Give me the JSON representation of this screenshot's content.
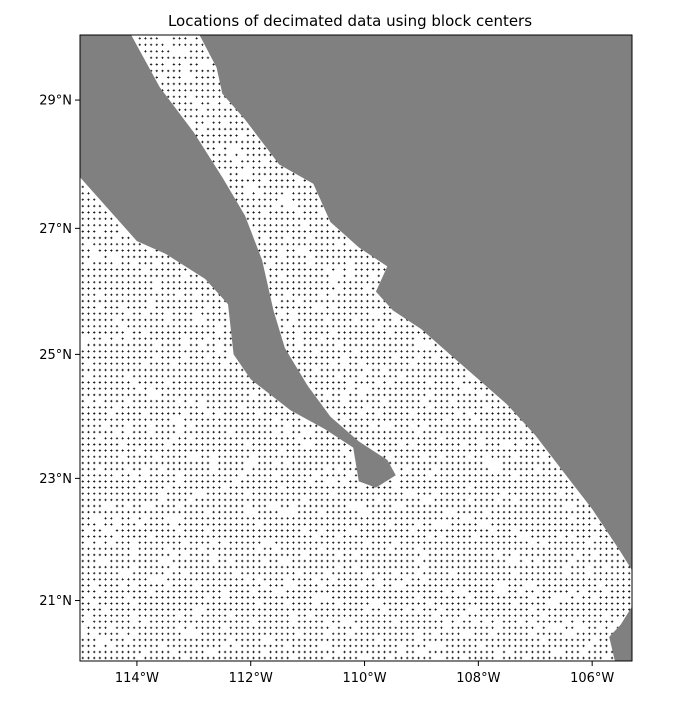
{
  "chart_data": {
    "type": "map",
    "title": "Locations of decimated data using block centers",
    "region": {
      "lon_min": -115.0,
      "lon_max": -105.3,
      "lat_min": 20.0,
      "lat_max": 30.0
    },
    "projection": "mercator",
    "x_ticks": [
      {
        "value": -114,
        "label": "114°W"
      },
      {
        "value": -112,
        "label": "112°W"
      },
      {
        "value": -110,
        "label": "110°W"
      },
      {
        "value": -108,
        "label": "108°W"
      },
      {
        "value": -106,
        "label": "106°W"
      }
    ],
    "y_ticks": [
      {
        "value": 21,
        "label": "21°N"
      },
      {
        "value": 23,
        "label": "23°N"
      },
      {
        "value": 25,
        "label": "25°N"
      },
      {
        "value": 27,
        "label": "27°N"
      },
      {
        "value": 29,
        "label": "29°N"
      }
    ],
    "land_color": "#808080",
    "point_color": "#000000",
    "block_spacing_deg": 0.1,
    "land_polygons": [
      {
        "name": "Baja California peninsula",
        "coords": [
          [
            -115.0,
            30.0
          ],
          [
            -114.1,
            30.0
          ],
          [
            -113.6,
            29.2
          ],
          [
            -113.0,
            28.5
          ],
          [
            -112.5,
            27.8
          ],
          [
            -112.1,
            27.2
          ],
          [
            -111.8,
            26.5
          ],
          [
            -111.6,
            25.7
          ],
          [
            -111.4,
            25.1
          ],
          [
            -111.0,
            24.5
          ],
          [
            -110.6,
            24.0
          ],
          [
            -110.1,
            23.6
          ],
          [
            -109.6,
            23.3
          ],
          [
            -109.45,
            23.05
          ],
          [
            -109.8,
            22.85
          ],
          [
            -110.1,
            22.95
          ],
          [
            -110.2,
            23.5
          ],
          [
            -110.7,
            23.8
          ],
          [
            -111.3,
            24.1
          ],
          [
            -112.0,
            24.6
          ],
          [
            -112.3,
            25.0
          ],
          [
            -112.4,
            25.8
          ],
          [
            -112.8,
            26.2
          ],
          [
            -113.5,
            26.6
          ],
          [
            -114.0,
            26.8
          ],
          [
            -114.5,
            27.3
          ],
          [
            -115.0,
            27.8
          ]
        ]
      },
      {
        "name": "Mainland Mexico",
        "coords": [
          [
            -112.9,
            30.0
          ],
          [
            -105.3,
            30.0
          ],
          [
            -105.3,
            21.5
          ],
          [
            -105.5,
            21.8
          ],
          [
            -106.0,
            22.5
          ],
          [
            -106.5,
            23.1
          ],
          [
            -107.0,
            23.7
          ],
          [
            -107.5,
            24.2
          ],
          [
            -108.0,
            24.6
          ],
          [
            -108.5,
            25.0
          ],
          [
            -109.0,
            25.4
          ],
          [
            -109.5,
            25.7
          ],
          [
            -109.8,
            26.0
          ],
          [
            -109.6,
            26.4
          ],
          [
            -110.1,
            26.7
          ],
          [
            -110.6,
            27.1
          ],
          [
            -110.9,
            27.7
          ],
          [
            -111.5,
            28.0
          ],
          [
            -112.1,
            28.7
          ],
          [
            -112.5,
            29.1
          ],
          [
            -112.6,
            29.5
          ]
        ]
      },
      {
        "name": "Tres Marias islands",
        "coords": [
          [
            -105.3,
            20.9
          ],
          [
            -105.5,
            20.6
          ],
          [
            -105.7,
            20.4
          ],
          [
            -105.6,
            20.0
          ],
          [
            -105.3,
            20.0
          ]
        ]
      }
    ],
    "data_mask_polygons": [
      {
        "name": "Gulf of California",
        "coords": [
          [
            -114.1,
            30.0
          ],
          [
            -112.9,
            30.0
          ],
          [
            -112.6,
            29.5
          ],
          [
            -112.5,
            29.1
          ],
          [
            -112.1,
            28.7
          ],
          [
            -111.5,
            28.0
          ],
          [
            -110.9,
            27.7
          ],
          [
            -110.6,
            27.1
          ],
          [
            -110.1,
            26.7
          ],
          [
            -109.6,
            26.4
          ],
          [
            -109.8,
            26.0
          ],
          [
            -109.5,
            25.7
          ],
          [
            -109.0,
            25.4
          ],
          [
            -108.5,
            25.0
          ],
          [
            -108.0,
            24.6
          ],
          [
            -107.5,
            24.2
          ],
          [
            -107.0,
            23.7
          ],
          [
            -106.5,
            23.1
          ],
          [
            -106.0,
            22.5
          ],
          [
            -105.5,
            21.8
          ],
          [
            -105.3,
            21.5
          ],
          [
            -105.3,
            20.0
          ],
          [
            -115.0,
            20.0
          ],
          [
            -115.0,
            27.8
          ],
          [
            -114.5,
            27.3
          ],
          [
            -114.0,
            26.8
          ],
          [
            -113.5,
            26.6
          ],
          [
            -112.8,
            26.2
          ],
          [
            -112.4,
            25.8
          ],
          [
            -112.3,
            25.0
          ],
          [
            -112.0,
            24.6
          ],
          [
            -111.3,
            24.1
          ],
          [
            -110.7,
            23.8
          ],
          [
            -110.2,
            23.5
          ],
          [
            -110.1,
            22.95
          ],
          [
            -109.8,
            22.85
          ],
          [
            -109.45,
            23.05
          ],
          [
            -109.6,
            23.3
          ],
          [
            -110.1,
            23.6
          ],
          [
            -110.6,
            24.0
          ],
          [
            -111.0,
            24.5
          ],
          [
            -111.4,
            25.1
          ],
          [
            -111.6,
            25.7
          ],
          [
            -111.8,
            26.5
          ],
          [
            -112.1,
            27.2
          ],
          [
            -112.5,
            27.8
          ],
          [
            -113.0,
            28.5
          ],
          [
            -113.6,
            29.2
          ]
        ]
      }
    ]
  }
}
